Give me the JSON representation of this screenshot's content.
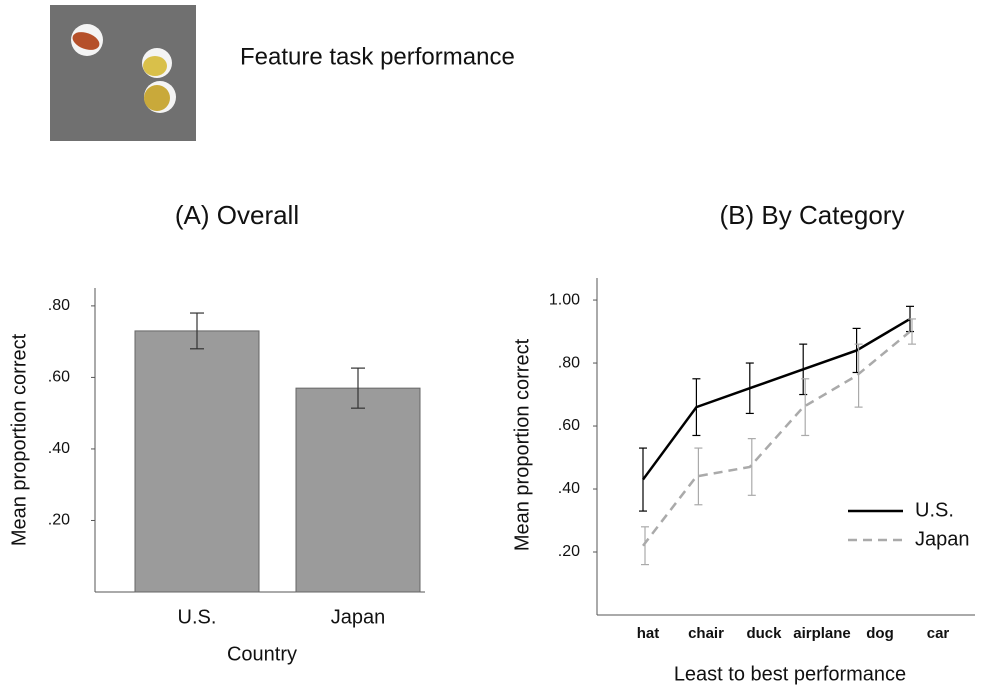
{
  "header": {
    "title": "Feature task performance"
  },
  "chart_data": [
    {
      "type": "bar",
      "title": "(A) Overall",
      "x_label": "Country",
      "y_label": "Mean proportion correct",
      "categories": [
        "U.S.",
        "Japan"
      ],
      "values": [
        0.73,
        0.57
      ],
      "errors": [
        0.05,
        0.056
      ],
      "color": "#9b9b9b",
      "ylim": [
        0,
        0.85
      ],
      "yticks": [
        {
          "value": 0.2,
          "label": ".20"
        },
        {
          "value": 0.4,
          "label": ".40"
        },
        {
          "value": 0.6,
          "label": ".60"
        },
        {
          "value": 0.8,
          "label": ".80"
        }
      ]
    },
    {
      "type": "line",
      "title": "(B) By Category",
      "x_label": "Least to best performance",
      "y_label": "Mean proportion correct",
      "categories": [
        "hat",
        "chair",
        "duck",
        "airplane",
        "dog",
        "car"
      ],
      "series": [
        {
          "name": "U.S.",
          "color": "#000000",
          "dashed": false,
          "values": [
            0.43,
            0.66,
            0.72,
            0.78,
            0.84,
            0.94
          ],
          "errors": [
            0.1,
            0.09,
            0.08,
            0.08,
            0.07,
            0.04
          ]
        },
        {
          "name": "Japan",
          "color": "#aaaaaa",
          "dashed": true,
          "values": [
            0.22,
            0.44,
            0.47,
            0.66,
            0.76,
            0.9
          ],
          "errors": [
            0.06,
            0.09,
            0.09,
            0.09,
            0.1,
            0.04
          ]
        }
      ],
      "legend": "right",
      "ylim": [
        0,
        1.07
      ],
      "yticks": [
        {
          "value": 0.2,
          "label": ".20"
        },
        {
          "value": 0.4,
          "label": ".40"
        },
        {
          "value": 0.6,
          "label": ".60"
        },
        {
          "value": 0.8,
          "label": ".80"
        },
        {
          "value": 1,
          "label": "1.00"
        }
      ]
    }
  ]
}
